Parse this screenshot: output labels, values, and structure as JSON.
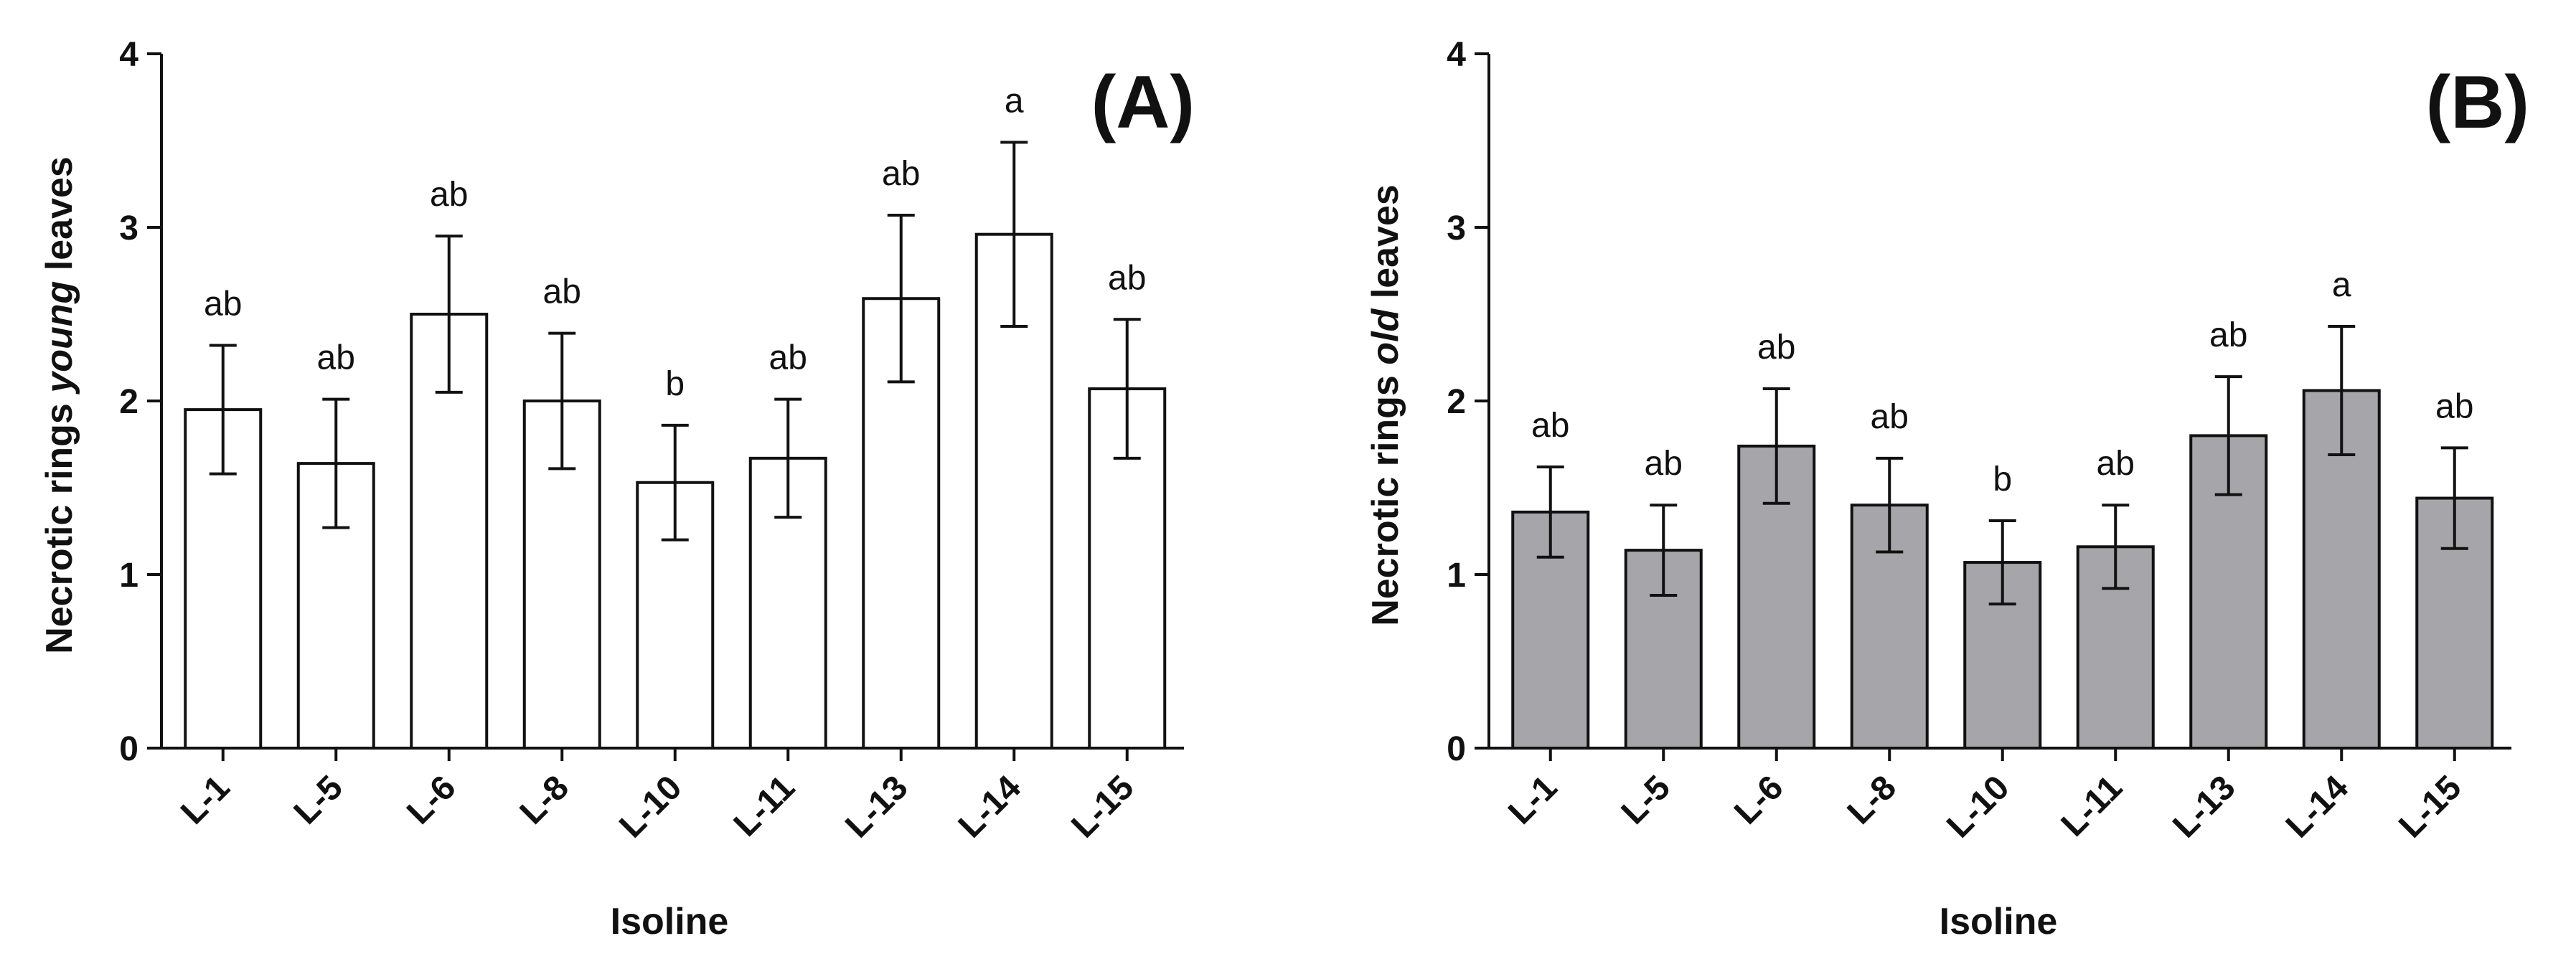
{
  "chart_data": [
    {
      "type": "bar",
      "panel_label": "(A)",
      "categories": [
        "L-1",
        "L-5",
        "L-6",
        "L-8",
        "L-10",
        "L-11",
        "L-13",
        "L-14",
        "L-15"
      ],
      "values": [
        1.95,
        1.64,
        2.5,
        2.0,
        1.53,
        1.67,
        2.59,
        2.96,
        2.07
      ],
      "errors": [
        0.37,
        0.37,
        0.45,
        0.39,
        0.33,
        0.34,
        0.48,
        0.53,
        0.4
      ],
      "significance": [
        "ab",
        "ab",
        "ab",
        "ab",
        "b",
        "ab",
        "ab",
        "a",
        "ab"
      ],
      "ylabel": {
        "before": "Necrotic rings ",
        "italic": "young",
        "after": " leaves"
      },
      "xlabel": "Isoline",
      "ylim": [
        0,
        4
      ],
      "yticks": [
        "0",
        "1",
        "2",
        "3",
        "4"
      ],
      "bar_color": "#ffffff"
    },
    {
      "type": "bar",
      "panel_label": "(B)",
      "categories": [
        "L-1",
        "L-5",
        "L-6",
        "L-8",
        "L-10",
        "L-11",
        "L-13",
        "L-14",
        "L-15"
      ],
      "values": [
        1.36,
        1.14,
        1.74,
        1.4,
        1.07,
        1.16,
        1.8,
        2.06,
        1.44
      ],
      "errors": [
        0.26,
        0.26,
        0.33,
        0.27,
        0.24,
        0.24,
        0.34,
        0.37,
        0.29
      ],
      "significance": [
        "ab",
        "ab",
        "ab",
        "ab",
        "b",
        "ab",
        "ab",
        "a",
        "ab"
      ],
      "ylabel": {
        "before": "Necrotic rings ",
        "italic": "old",
        "after": " leaves"
      },
      "xlabel": "Isoline",
      "ylim": [
        0,
        4
      ],
      "yticks": [
        "0",
        "1",
        "2",
        "3",
        "4"
      ],
      "bar_color": "#a6a6aa"
    }
  ]
}
